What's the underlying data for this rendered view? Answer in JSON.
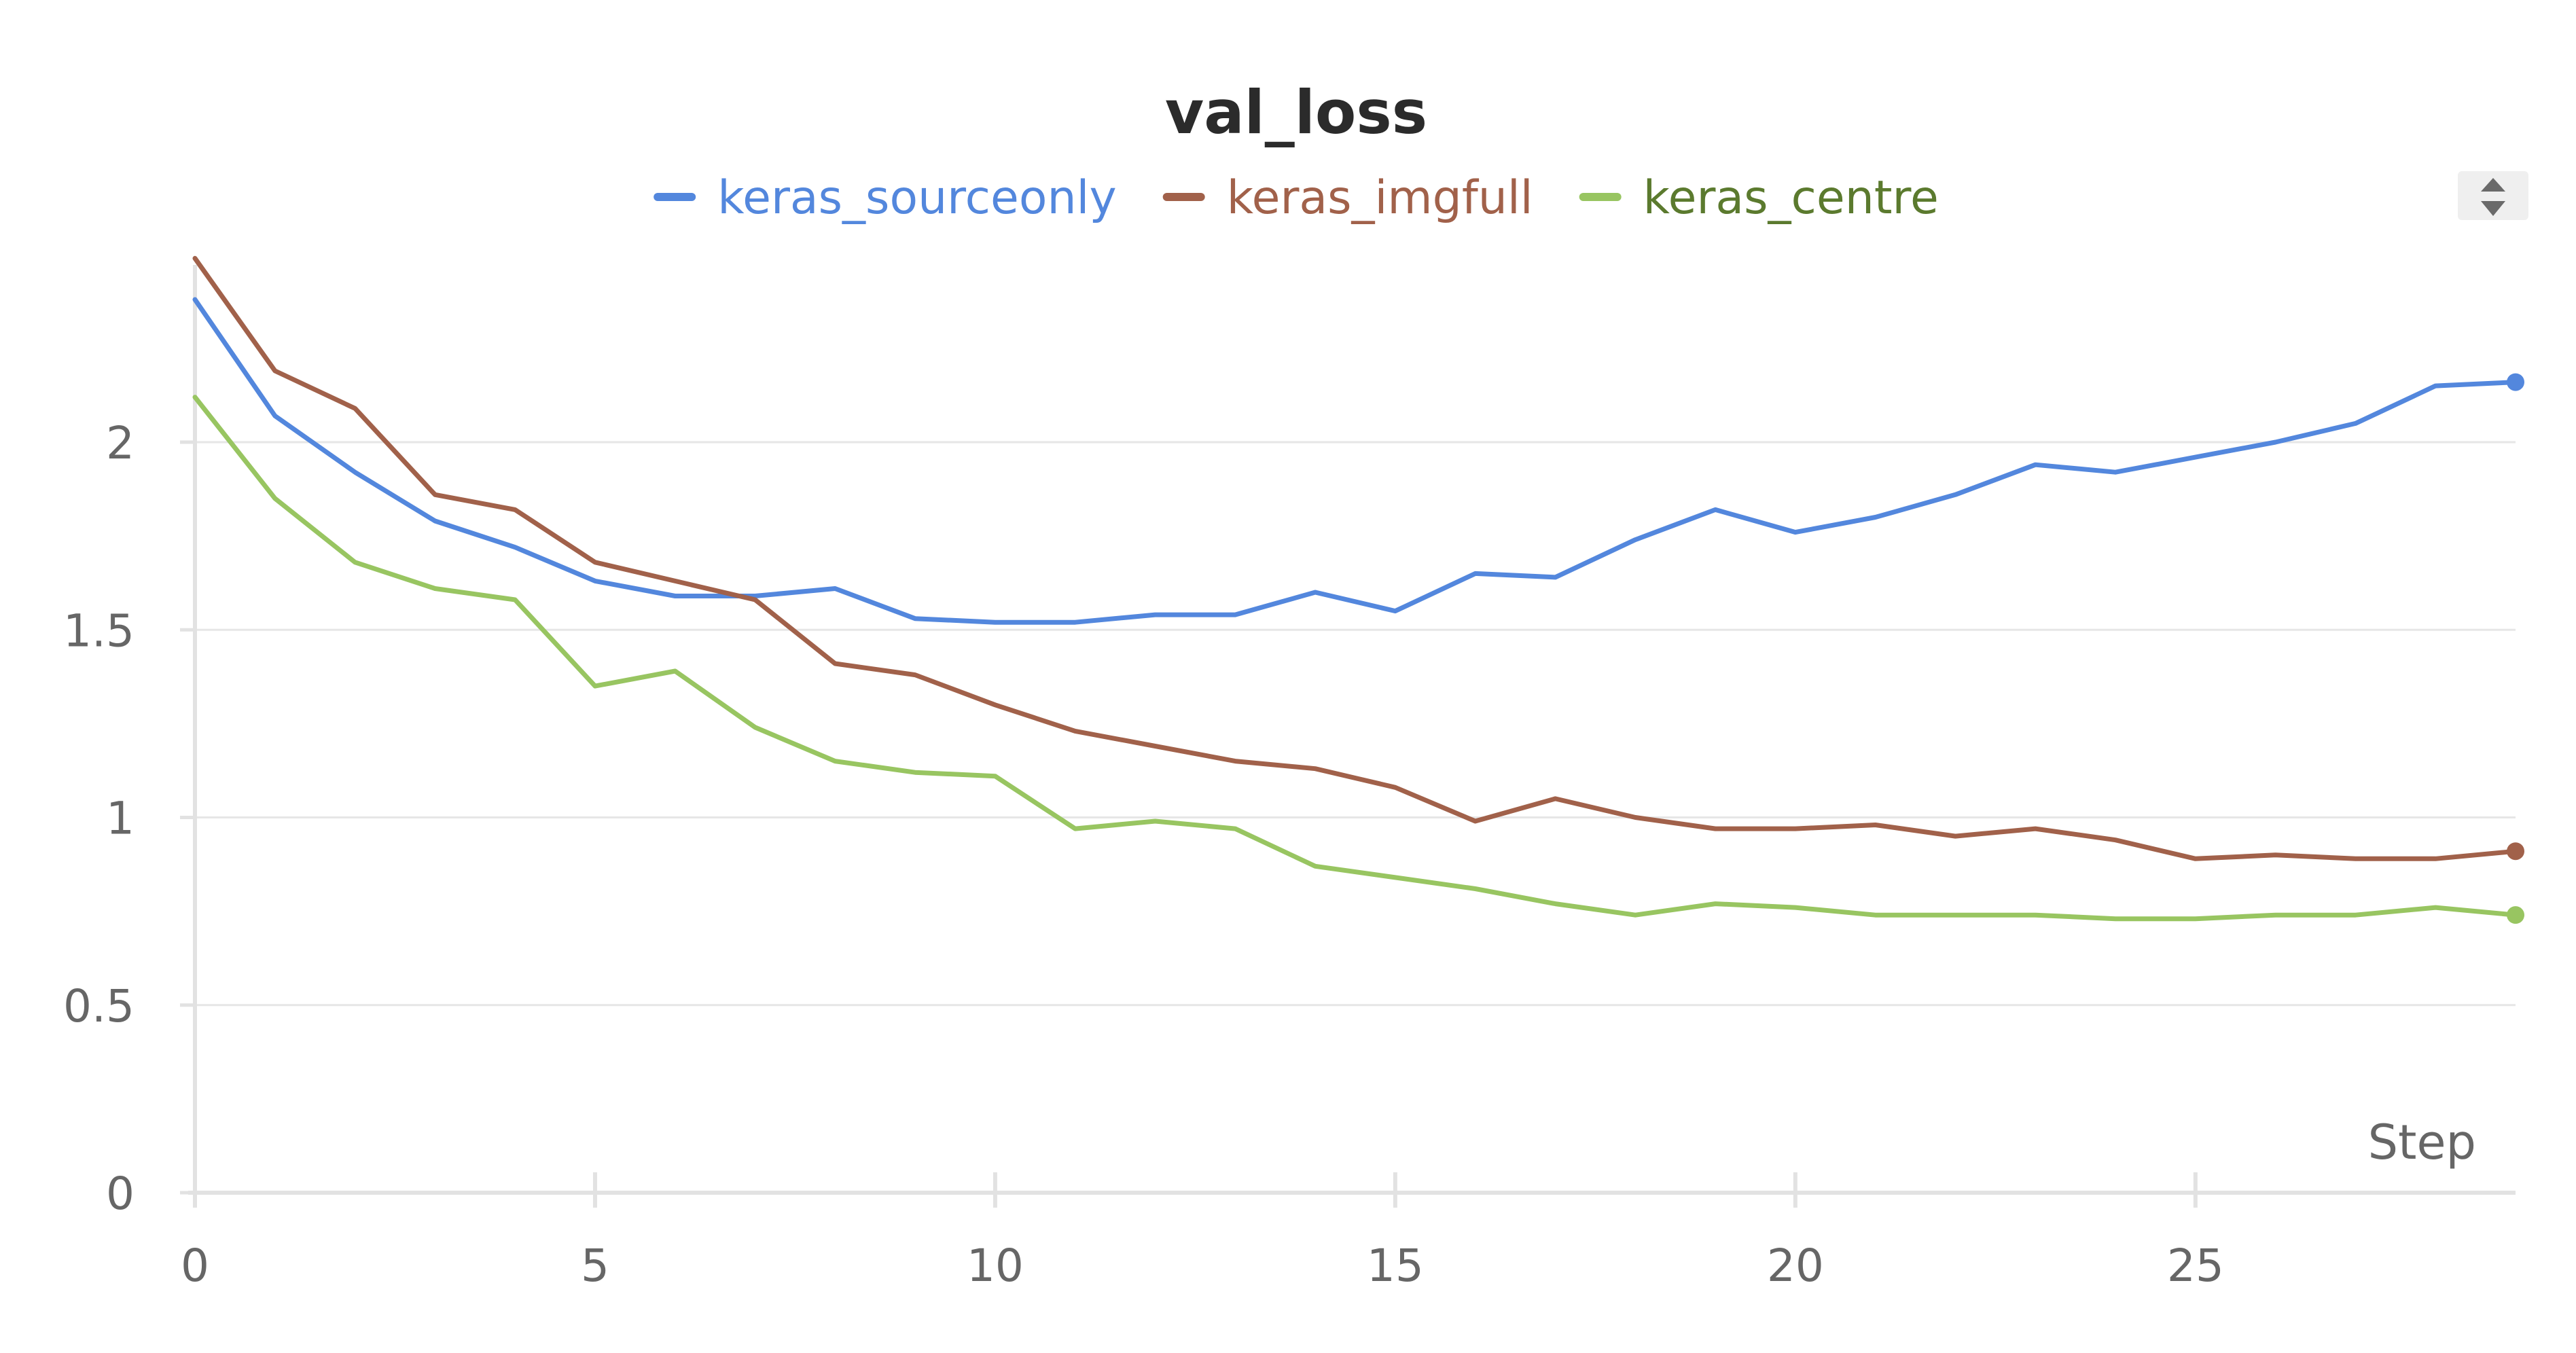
{
  "chart_data": {
    "type": "line",
    "title": "val_loss",
    "xlabel": "Step",
    "ylabel": "",
    "xlim": [
      0,
      29
    ],
    "ylim": [
      0,
      2.5
    ],
    "x_ticks": [
      0,
      5,
      10,
      15,
      20,
      25
    ],
    "y_ticks": [
      0,
      0.5,
      1,
      1.5,
      2
    ],
    "x_tick_labels": [
      "0",
      "5",
      "10",
      "15",
      "20",
      "25"
    ],
    "y_tick_labels": [
      "0",
      "0.5",
      "1",
      "1.5",
      "2"
    ],
    "grid": true,
    "legend_position": "top",
    "x": [
      0,
      1,
      2,
      3,
      4,
      5,
      6,
      7,
      8,
      9,
      10,
      11,
      12,
      13,
      14,
      15,
      16,
      17,
      18,
      19,
      20,
      21,
      22,
      23,
      24,
      25,
      26,
      27,
      28,
      29
    ],
    "series": [
      {
        "name": "keras_sourceonly",
        "color": "#5387dd",
        "values": [
          2.38,
          2.07,
          1.92,
          1.79,
          1.72,
          1.63,
          1.59,
          1.59,
          1.61,
          1.53,
          1.52,
          1.52,
          1.54,
          1.54,
          1.6,
          1.55,
          1.65,
          1.64,
          1.74,
          1.82,
          1.76,
          1.8,
          1.86,
          1.94,
          1.92,
          1.96,
          2.0,
          2.05,
          2.15,
          2.16
        ]
      },
      {
        "name": "keras_imgfull",
        "color": "#a1614a",
        "values": [
          2.49,
          2.19,
          2.09,
          1.86,
          1.82,
          1.68,
          1.63,
          1.58,
          1.41,
          1.38,
          1.3,
          1.23,
          1.19,
          1.15,
          1.13,
          1.08,
          0.99,
          1.05,
          1.0,
          0.97,
          0.97,
          0.98,
          0.95,
          0.97,
          0.94,
          0.89,
          0.9,
          0.89,
          0.89,
          0.91
        ]
      },
      {
        "name": "keras_centre",
        "color": "#98c561",
        "legend_text_color": "#5b7a2e",
        "values": [
          2.12,
          1.85,
          1.68,
          1.61,
          1.58,
          1.35,
          1.39,
          1.24,
          1.15,
          1.12,
          1.11,
          0.97,
          0.99,
          0.97,
          0.87,
          0.84,
          0.81,
          0.77,
          0.74,
          0.77,
          0.76,
          0.74,
          0.74,
          0.74,
          0.73,
          0.73,
          0.74,
          0.74,
          0.76,
          0.74
        ]
      }
    ]
  },
  "controls": {
    "legend_scroll_icon": "up-down-arrows-icon"
  }
}
